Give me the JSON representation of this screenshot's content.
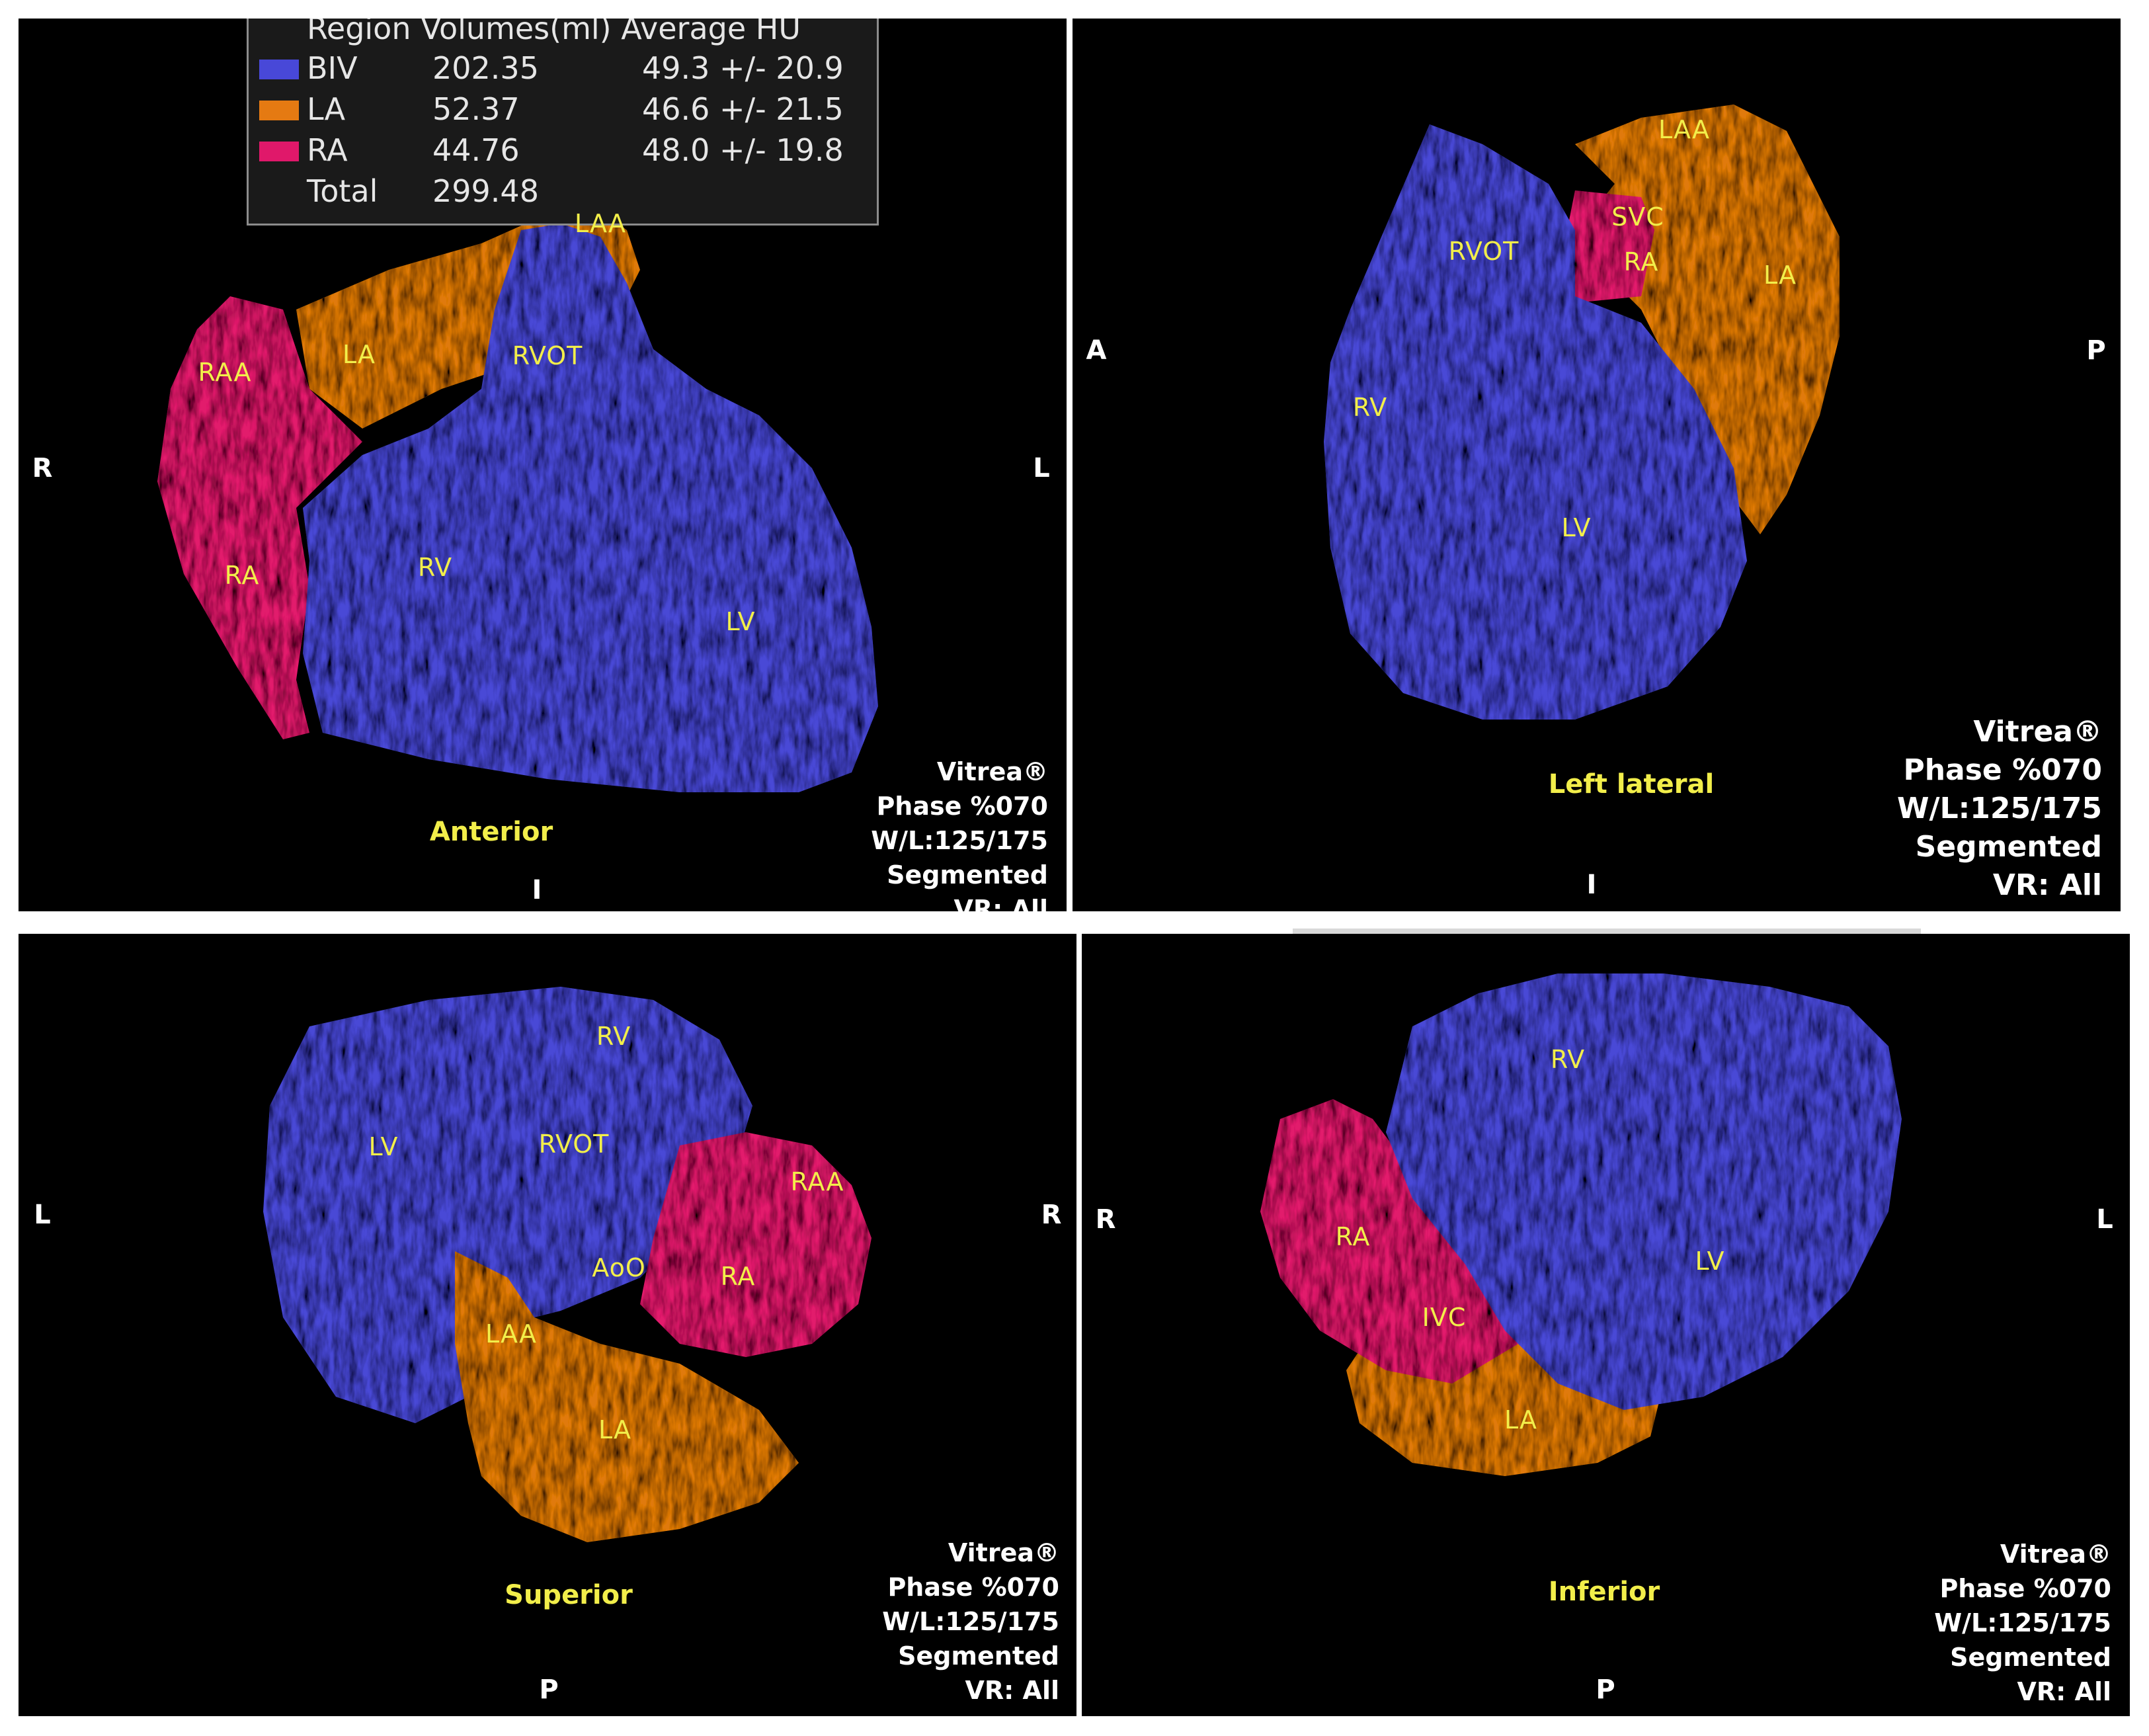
{
  "legend": {
    "header": "Region Volumes(ml) Average HU",
    "rows": [
      {
        "region": "BIV",
        "volume": "202.35",
        "hu": "49.3 +/- 20.9",
        "color": "#4848d8"
      },
      {
        "region": "LA",
        "volume": "52.37",
        "hu": "46.6 +/- 21.5",
        "color": "#e57a12"
      },
      {
        "region": "RA",
        "volume": "44.76",
        "hu": "48.0 +/- 19.8",
        "color": "#e0186a"
      }
    ],
    "total_label": "Total",
    "total_value": "299.48"
  },
  "colors": {
    "biv": "#4a4ad6",
    "la": "#e07a10",
    "ra": "#e21a6c",
    "label": "#f2ee4a",
    "background": "#000000"
  },
  "info_lines": [
    "Vitrea®",
    "Phase %070",
    "W/L:125/175",
    "Segmented",
    "VR: All"
  ],
  "panels": {
    "anterior": {
      "view_label": "Anterior",
      "orient": {
        "left": "R",
        "right": "L",
        "bottom": "I"
      },
      "labels": {
        "laa": "LAA",
        "raa": "RAA",
        "la": "LA",
        "rvot": "RVOT",
        "ra": "RA",
        "rv": "RV",
        "lv": "LV"
      }
    },
    "left_lateral": {
      "view_label": "Left lateral",
      "orient": {
        "left": "A",
        "right": "P",
        "bottom": "I"
      },
      "labels": {
        "laa": "LAA",
        "svc": "SVC",
        "rvot": "RVOT",
        "ra": "RA",
        "la": "LA",
        "rv": "RV",
        "lv": "LV"
      }
    },
    "superior": {
      "view_label": "Superior",
      "orient": {
        "left": "L",
        "right": "R",
        "bottom": "P"
      },
      "labels": {
        "rv": "RV",
        "lv": "LV",
        "rvot": "RVOT",
        "raa": "RAA",
        "aoo": "AoO",
        "ra": "RA",
        "laa": "LAA",
        "la": "LA"
      }
    },
    "inferior": {
      "view_label": "Inferior",
      "orient": {
        "left": "R",
        "right": "L",
        "bottom": "P"
      },
      "labels": {
        "rv": "RV",
        "ra": "RA",
        "lv": "LV",
        "ivc": "IVC",
        "la": "LA"
      }
    }
  }
}
